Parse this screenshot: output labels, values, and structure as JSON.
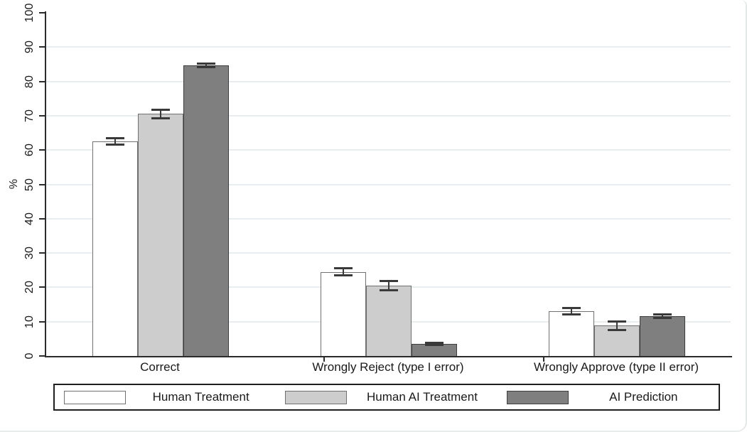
{
  "chart_data": {
    "type": "bar",
    "title": "",
    "ylabel": "%",
    "ylim": [
      0,
      100
    ],
    "yticks": [
      0,
      10,
      20,
      30,
      40,
      50,
      60,
      70,
      80,
      90,
      100
    ],
    "gridline_values": [
      10,
      20,
      30,
      40,
      50,
      60,
      70,
      80,
      90
    ],
    "grid": true,
    "legend_position": "bottom",
    "categories": [
      "Correct",
      "Wrongly Reject (type I error)",
      "Wrongly Approve (type II error)"
    ],
    "series": [
      {
        "name": "Human Treatment",
        "fill": "#ffffff",
        "border": "#707070",
        "values": [
          62.5,
          24.5,
          13.0
        ],
        "errors": [
          1.0,
          1.1,
          0.9
        ]
      },
      {
        "name": "Human AI Treatment",
        "fill": "#cdcdcd",
        "border": "#707070",
        "values": [
          70.5,
          20.5,
          8.8
        ],
        "errors": [
          1.3,
          1.3,
          1.2
        ]
      },
      {
        "name": "AI Prediction",
        "fill": "#7f7f7f",
        "border": "#3d3d3d",
        "values": [
          84.7,
          3.5,
          11.6
        ],
        "errors": [
          0.6,
          0.3,
          0.6
        ]
      }
    ],
    "error_bar_color": "#3a3a3a",
    "axis_color": "#2b2b2b",
    "gridline_color": "#e8eef0",
    "text_color": "#1a1a1a"
  }
}
